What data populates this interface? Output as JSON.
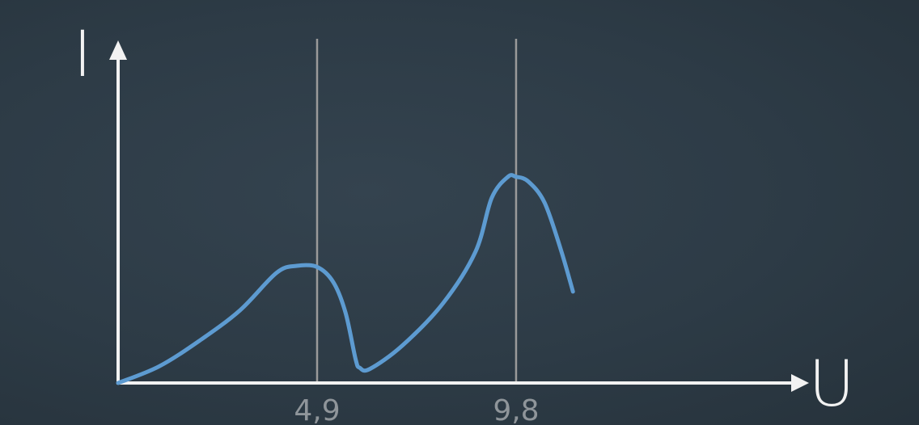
{
  "colors": {
    "background": "#2c3a45",
    "axis": "#f2f2f2",
    "marker_line": "#9a9a9a",
    "curve": "#5d9bd1",
    "tick_text": "#8f959a"
  },
  "chart_data": {
    "type": "line",
    "title": "",
    "xlabel": "U",
    "ylabel": "I",
    "xlim": [
      0,
      17.4
    ],
    "ylim": [
      0,
      10
    ],
    "grid": false,
    "x_ticks": [
      4.9,
      9.8
    ],
    "x_tick_labels": [
      "4,9",
      "9,8"
    ],
    "vertical_markers": [
      4.9,
      9.8
    ],
    "series": [
      {
        "x": [
          0,
          1,
          2,
          3,
          3.9,
          4.4,
          4.9,
          5.3,
          5.6,
          5.85,
          5.95,
          6.2,
          7,
          8,
          8.8,
          9.2,
          9.6,
          9.8,
          10.1,
          10.5,
          10.9,
          11.2
        ],
        "y": [
          0,
          0.7,
          1.8,
          3.1,
          4.7,
          5.0,
          4.95,
          4.3,
          3.0,
          1.0,
          0.65,
          0.6,
          1.6,
          3.4,
          5.6,
          7.9,
          8.8,
          8.8,
          8.6,
          7.7,
          5.7,
          3.9
        ]
      }
    ]
  }
}
